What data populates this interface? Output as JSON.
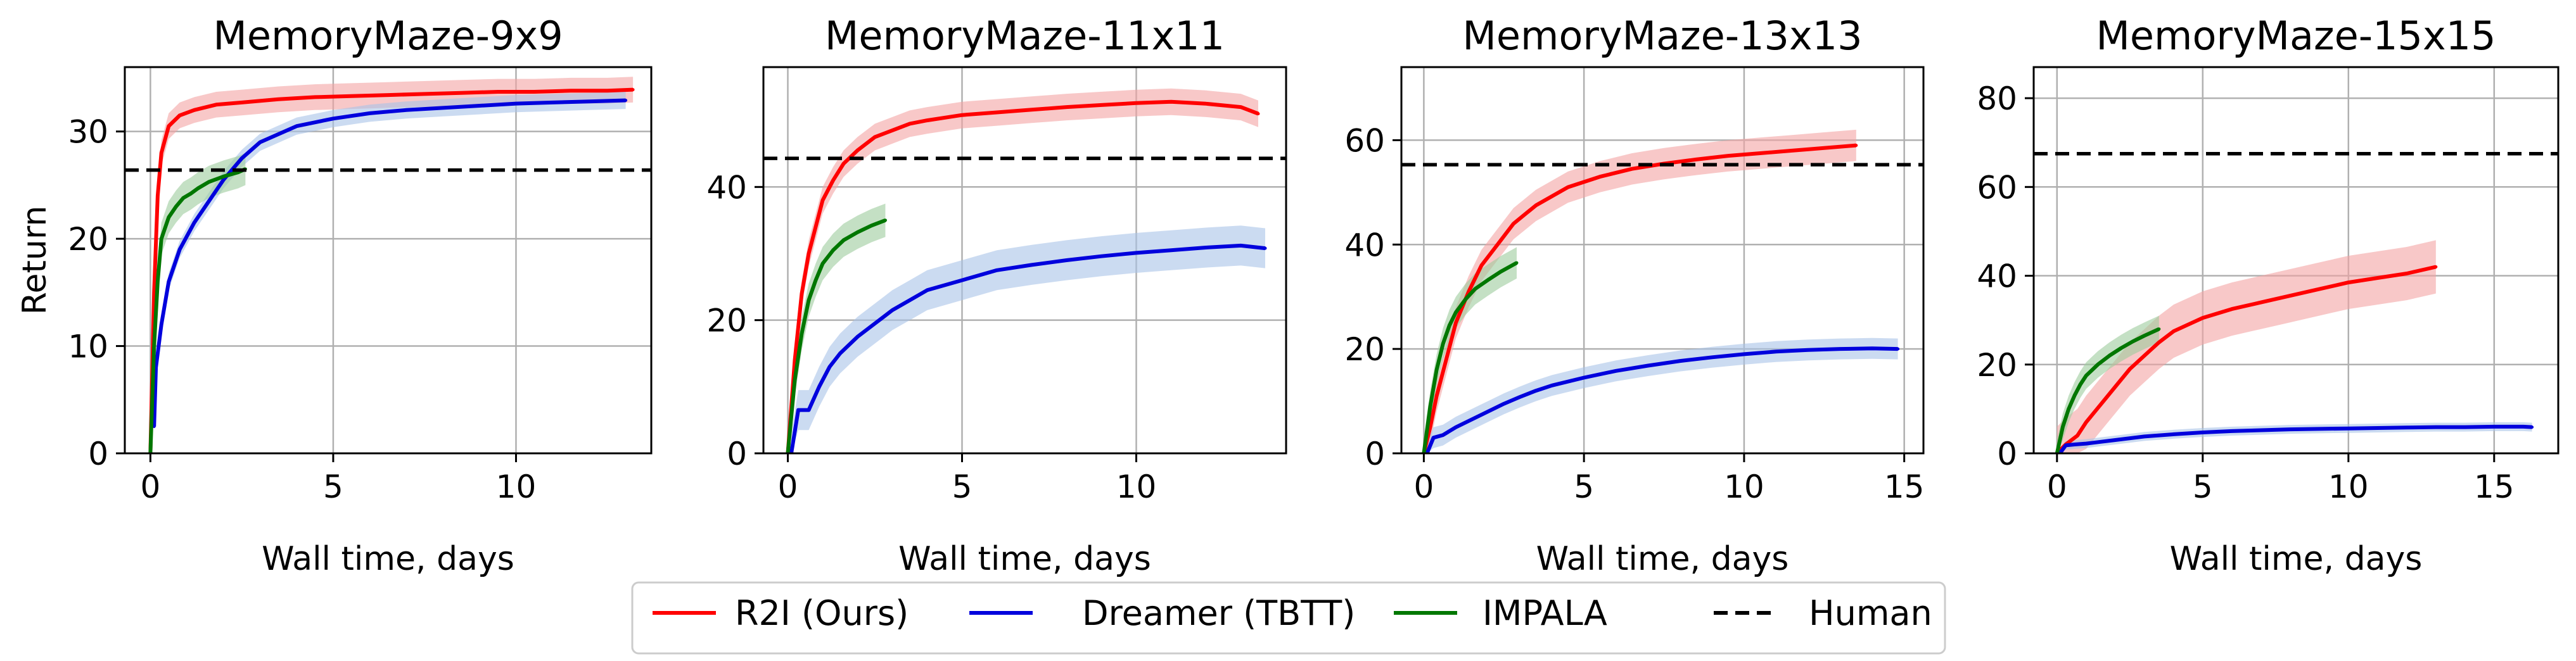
{
  "series_styles": {
    "r2i": {
      "color": "#ff0000",
      "band": "#f4a3a3"
    },
    "dreamer": {
      "color": "#0000dd",
      "band": "#a9c3e8"
    },
    "impala": {
      "color": "#007700",
      "band": "#9ccc9c"
    },
    "human": {
      "color": "#000000"
    }
  },
  "legend": {
    "items": [
      {
        "label": "R2I (Ours)",
        "series": "r2i",
        "style": "solid"
      },
      {
        "label": "Dreamer (TBTT)",
        "series": "dreamer",
        "style": "solid"
      },
      {
        "label": "IMPALA",
        "series": "impala",
        "style": "solid"
      },
      {
        "label": "Human",
        "series": "human",
        "style": "dashed"
      }
    ],
    "placement": "bottom-center"
  },
  "chart_data": [
    {
      "type": "line",
      "title": "MemoryMaze-9x9",
      "xlabel": "Wall time, days",
      "ylabel": "Return",
      "xlim": [
        -0.7,
        13.7
      ],
      "ylim": [
        0,
        36
      ],
      "xticks": [
        0,
        5,
        10
      ],
      "yticks": [
        0,
        10,
        20,
        30
      ],
      "grid": true,
      "human": 26.4,
      "series": [
        {
          "name": "R2I (Ours)",
          "key": "r2i",
          "band_width": 1.2,
          "x": [
            0,
            0.1,
            0.2,
            0.3,
            0.5,
            0.8,
            1.2,
            1.8,
            2.5,
            3.5,
            4.5,
            5.5,
            6.5,
            7.5,
            8.5,
            9.5,
            10.5,
            11.5,
            12.5,
            13.2
          ],
          "y": [
            0,
            15,
            24,
            28,
            30.5,
            31.5,
            32,
            32.5,
            32.7,
            33,
            33.2,
            33.3,
            33.4,
            33.5,
            33.6,
            33.7,
            33.7,
            33.8,
            33.8,
            33.9
          ]
        },
        {
          "name": "Dreamer (TBTT)",
          "key": "dreamer",
          "band_width": 0.8,
          "x": [
            0.1,
            0.15,
            0.3,
            0.5,
            0.8,
            1.2,
            1.6,
            2.0,
            2.5,
            3.0,
            4.0,
            5.0,
            6.0,
            7.0,
            8.0,
            9.0,
            10.0,
            11.0,
            12.0,
            13.0
          ],
          "y": [
            2.5,
            8,
            12,
            16,
            19,
            21.5,
            23.5,
            25.5,
            27.5,
            29,
            30.5,
            31.2,
            31.7,
            32,
            32.2,
            32.4,
            32.6,
            32.7,
            32.8,
            32.9
          ]
        },
        {
          "name": "IMPALA",
          "key": "impala",
          "band_width": 1.5,
          "x": [
            0,
            0.1,
            0.2,
            0.3,
            0.5,
            0.7,
            0.9,
            1.1,
            1.3,
            1.6,
            2.0,
            2.4,
            2.6
          ],
          "y": [
            0,
            10,
            16,
            20,
            22,
            23,
            23.8,
            24.2,
            24.7,
            25.3,
            25.8,
            26.2,
            26.5
          ]
        }
      ]
    },
    {
      "type": "line",
      "title": "MemoryMaze-11x11",
      "xlabel": "Wall time, days",
      "xlim": [
        -0.7,
        14.3
      ],
      "ylim": [
        0,
        58
      ],
      "xticks": [
        0,
        5,
        10
      ],
      "yticks": [
        0,
        20,
        40
      ],
      "grid": true,
      "human": 44.3,
      "series": [
        {
          "name": "R2I (Ours)",
          "key": "r2i",
          "band_width": 2.0,
          "x": [
            0,
            0.2,
            0.4,
            0.6,
            0.8,
            1.0,
            1.3,
            1.6,
            2.0,
            2.5,
            3.0,
            3.5,
            4.0,
            5.0,
            6.0,
            7.0,
            8.0,
            9.0,
            10.0,
            11.0,
            12.0,
            13.0,
            13.5
          ],
          "y": [
            0,
            14,
            24,
            30,
            34,
            38,
            41,
            43.5,
            45.5,
            47.5,
            48.5,
            49.5,
            50,
            50.8,
            51.2,
            51.6,
            52,
            52.3,
            52.6,
            52.8,
            52.5,
            52,
            51
          ]
        },
        {
          "name": "Dreamer (TBTT)",
          "key": "dreamer",
          "band_width": 3.0,
          "x": [
            0.1,
            0.3,
            0.6,
            0.9,
            1.2,
            1.5,
            2.0,
            2.5,
            3.0,
            3.5,
            4.0,
            5.0,
            6.0,
            7.0,
            8.0,
            9.0,
            10.0,
            11.0,
            12.0,
            13.0,
            13.7
          ],
          "y": [
            0,
            6.5,
            6.5,
            10,
            13,
            15,
            17.5,
            19.5,
            21.5,
            23,
            24.5,
            26,
            27.5,
            28.3,
            29,
            29.6,
            30.1,
            30.5,
            30.9,
            31.2,
            30.8
          ]
        },
        {
          "name": "IMPALA",
          "key": "impala",
          "band_width": 2.5,
          "x": [
            0,
            0.2,
            0.4,
            0.6,
            0.8,
            1.0,
            1.3,
            1.6,
            2.0,
            2.4,
            2.8
          ],
          "y": [
            0,
            11,
            18,
            23,
            26,
            28.5,
            30.5,
            32,
            33.2,
            34.2,
            35
          ]
        }
      ]
    },
    {
      "type": "line",
      "title": "MemoryMaze-13x13",
      "xlabel": "Wall time, days",
      "xlim": [
        -0.7,
        15.6
      ],
      "ylim": [
        0,
        74
      ],
      "xticks": [
        0,
        5,
        10,
        15
      ],
      "yticks": [
        0,
        20,
        40,
        60
      ],
      "grid": true,
      "human": 55.3,
      "series": [
        {
          "name": "R2I (Ours)",
          "key": "r2i",
          "band_width": 3.0,
          "x": [
            0,
            0.2,
            0.4,
            0.7,
            1.0,
            1.4,
            1.8,
            2.3,
            2.8,
            3.5,
            4.5,
            5.5,
            6.5,
            7.5,
            8.5,
            9.5,
            10.5,
            11.5,
            12.5,
            13.5
          ],
          "y": [
            0,
            5,
            11,
            18,
            25,
            31,
            36,
            40,
            44,
            47.5,
            51,
            53,
            54.5,
            55.5,
            56.3,
            57,
            57.5,
            58,
            58.5,
            59
          ]
        },
        {
          "name": "Dreamer (TBTT)",
          "key": "dreamer",
          "band_width": 2.0,
          "x": [
            0.1,
            0.3,
            0.6,
            1.0,
            1.5,
            2.0,
            2.5,
            3.0,
            3.5,
            4.0,
            5.0,
            6.0,
            7.0,
            8.0,
            9.0,
            10.0,
            11.0,
            12.0,
            13.0,
            14.0,
            14.8
          ],
          "y": [
            0,
            3,
            3.5,
            5,
            6.5,
            8,
            9.5,
            10.8,
            12,
            13,
            14.5,
            15.8,
            16.8,
            17.7,
            18.4,
            19,
            19.5,
            19.8,
            20,
            20.1,
            20
          ]
        },
        {
          "name": "IMPALA",
          "key": "impala",
          "band_width": 3.0,
          "x": [
            0,
            0.2,
            0.4,
            0.6,
            0.8,
            1.0,
            1.3,
            1.6,
            2.0,
            2.4,
            2.9
          ],
          "y": [
            0,
            9,
            16,
            21,
            24.5,
            27,
            29.5,
            31.5,
            33.2,
            34.8,
            36.5
          ]
        }
      ]
    },
    {
      "type": "line",
      "title": "MemoryMaze-15x15",
      "xlabel": "Wall time, days",
      "xlim": [
        -0.8,
        17.2
      ],
      "ylim": [
        0,
        87
      ],
      "xticks": [
        0,
        5,
        10,
        15
      ],
      "yticks": [
        0,
        20,
        40,
        60,
        80
      ],
      "grid": true,
      "human": 67.5,
      "series": [
        {
          "name": "R2I (Ours)",
          "key": "r2i",
          "band_width": 6.0,
          "x": [
            0,
            0.3,
            0.7,
            1.0,
            1.5,
            2.0,
            2.5,
            3.0,
            3.5,
            4.0,
            5.0,
            6.0,
            7.0,
            8.0,
            9.0,
            10.0,
            11.0,
            12.0,
            13.0
          ],
          "y": [
            0,
            2,
            4,
            7,
            11,
            15,
            19,
            22,
            25,
            27.5,
            30.5,
            32.5,
            34,
            35.5,
            37,
            38.5,
            39.5,
            40.5,
            42
          ]
        },
        {
          "name": "Dreamer (TBTT)",
          "key": "dreamer",
          "band_width": 1.0,
          "x": [
            0.1,
            0.3,
            0.6,
            1.0,
            1.5,
            2.0,
            3.0,
            4.0,
            5.0,
            6.0,
            7.0,
            8.0,
            9.0,
            10.0,
            11.0,
            12.0,
            13.0,
            14.0,
            15.0,
            16.0,
            16.3
          ],
          "y": [
            0,
            1.8,
            2,
            2.2,
            2.6,
            3,
            3.8,
            4.3,
            4.7,
            5,
            5.2,
            5.4,
            5.5,
            5.6,
            5.7,
            5.8,
            5.9,
            5.9,
            6,
            6,
            5.9
          ]
        },
        {
          "name": "IMPALA",
          "key": "impala",
          "band_width": 3.0,
          "x": [
            0,
            0.2,
            0.4,
            0.6,
            0.8,
            1.0,
            1.4,
            1.8,
            2.2,
            2.6,
            3.0,
            3.5
          ],
          "y": [
            0,
            6,
            10,
            13,
            15.5,
            17.5,
            20,
            22,
            23.7,
            25.2,
            26.5,
            28
          ]
        }
      ]
    }
  ]
}
